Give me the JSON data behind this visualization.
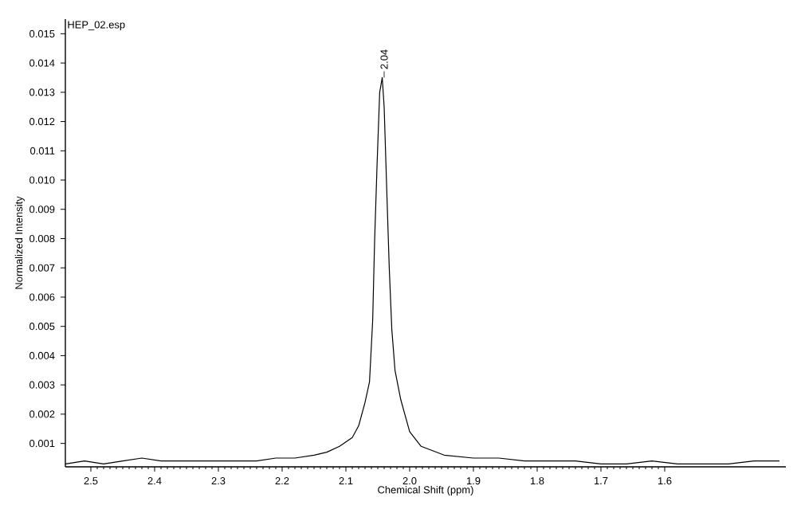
{
  "chart_data": {
    "type": "line",
    "xlabel": "Chemical Shift (ppm)",
    "ylabel": "Normalized Intensity",
    "annotations": [
      "HEP_02.esp",
      {
        "text": "2.04",
        "x": 2.04,
        "y": 0.0135
      }
    ],
    "xlim": [
      2.54,
      1.41
    ],
    "xticks": [
      2.5,
      2.4,
      2.3,
      2.2,
      2.1,
      {
        "value": 2,
        "label": "2.0"
      },
      1.9,
      1.8,
      1.7,
      1.6
    ],
    "ylim": [
      0.0002,
      0.0155
    ],
    "yticks": [
      0.001,
      0.002,
      0.003,
      0.004,
      0.005,
      0.006,
      0.007,
      0.008,
      0.009,
      {
        "value": 0.01,
        "label": "0.010"
      },
      0.011,
      0.012,
      0.013,
      0.014,
      0.015
    ],
    "grid": false,
    "marker": "none",
    "line_style": "solid",
    "series": [
      {
        "color": "#000000",
        "x": [
          2.54,
          2.51,
          2.48,
          2.45,
          2.42,
          2.39,
          2.36,
          2.33,
          2.3,
          2.27,
          2.24,
          2.21,
          2.18,
          2.15,
          2.13,
          2.11,
          2.09,
          2.08,
          2.07,
          2.063,
          2.058,
          2.055,
          2.051,
          2.047,
          2.043,
          2.04,
          2.036,
          2.032,
          2.028,
          2.023,
          2.014,
          2.0,
          1.982,
          1.946,
          1.9,
          1.86,
          1.82,
          1.78,
          1.74,
          1.7,
          1.66,
          1.62,
          1.58,
          1.54,
          1.5,
          1.46,
          1.42
        ],
        "values": [
          0.0003,
          0.0004,
          0.0003,
          0.0004,
          0.0005,
          0.0004,
          0.0004,
          0.0004,
          0.0004,
          0.0004,
          0.0004,
          0.0005,
          0.0005,
          0.0006,
          0.0007,
          0.0009,
          0.0012,
          0.0016,
          0.0024,
          0.0031,
          0.0052,
          0.0079,
          0.0106,
          0.013,
          0.0135,
          0.0125,
          0.0097,
          0.007,
          0.0049,
          0.0035,
          0.0025,
          0.0014,
          0.0009,
          0.0006,
          0.0005,
          0.0005,
          0.0004,
          0.0004,
          0.0004,
          0.0003,
          0.0003,
          0.0004,
          0.0003,
          0.0003,
          0.0003,
          0.0004,
          0.0004
        ]
      }
    ]
  }
}
